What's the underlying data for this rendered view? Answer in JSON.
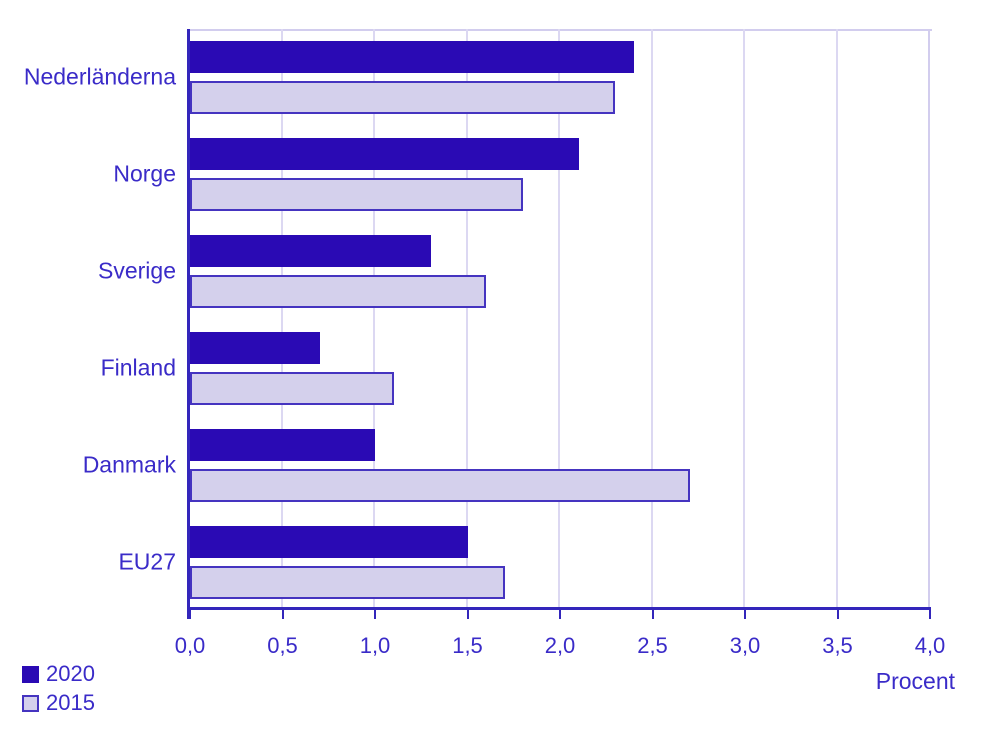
{
  "chart_data": {
    "type": "bar",
    "orientation": "horizontal",
    "title": "",
    "categories": [
      "Nederländerna",
      "Norge",
      "Sverige",
      "Finland",
      "Danmark",
      "EU27"
    ],
    "series": [
      {
        "name": "2020",
        "values": [
          2.4,
          2.1,
          1.3,
          0.7,
          1.0,
          1.5
        ],
        "fill": "#2a0ab4",
        "border": "#2a0ab4"
      },
      {
        "name": "2015",
        "values": [
          2.3,
          1.8,
          1.6,
          1.1,
          2.7,
          1.7
        ],
        "fill": "#d4d0ec",
        "border": "#4534c0"
      }
    ],
    "xlabel": "Procent",
    "ylabel": "",
    "xlim": [
      0,
      4
    ],
    "x_ticks": [
      0,
      0.5,
      1,
      1.5,
      2,
      2.5,
      3,
      3.5,
      4
    ],
    "x_tick_labels": [
      "0,0",
      "0,5",
      "1,0",
      "1,5",
      "2,0",
      "2,5",
      "3,0",
      "3,5",
      "4,0"
    ],
    "grid": "vertical",
    "legend_position": "bottom-left",
    "colors": {
      "text": "#3a2bc8",
      "axis": "#3326bb",
      "gridline": "#dcd8f2",
      "plot_border": "#d2cdee",
      "background": "#ffffff"
    }
  }
}
